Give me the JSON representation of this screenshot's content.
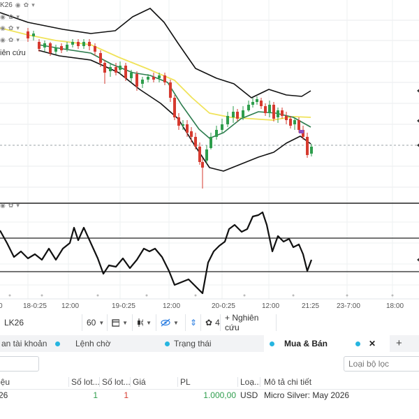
{
  "indicators": {
    "rows": [
      {
        "label": "K26",
        "icons": [
          "eye-icon",
          "gear-icon",
          "caret-down-icon"
        ]
      },
      {
        "label": "",
        "icons": [
          "eye-icon",
          "gear-icon",
          "caret-down-icon"
        ]
      },
      {
        "label": "",
        "icons": [
          "eye-icon",
          "gear-icon",
          "caret-down-icon"
        ]
      },
      {
        "label": "",
        "icons": [
          "eye-icon",
          "gear-icon",
          "caret-down-icon"
        ]
      }
    ],
    "research_label": "iên cứu",
    "lower_pane_icons": [
      "eye-icon",
      "gear-icon",
      "caret-down-icon"
    ]
  },
  "time_axis": {
    "labels": [
      "0",
      "18-0:25",
      "12:00",
      "19-0:25",
      "12:00",
      "20-0:25",
      "12:00",
      "21:25",
      "23-7:00",
      "18:00"
    ]
  },
  "toolbar": {
    "symbol": "LK26",
    "timeframe": "60",
    "indicator_count": "4",
    "research_button": "+ Nghiên cứu"
  },
  "tabs": [
    {
      "label": "an tài khoản",
      "active": false
    },
    {
      "label": "Lệnh chờ",
      "active": false
    },
    {
      "label": "Trạng thái",
      "active": false
    },
    {
      "label": "Mua & Bán",
      "active": true
    }
  ],
  "tab_actions": {
    "close": "✕",
    "add": "+"
  },
  "filter": {
    "placeholder": "Loại bộ lọc"
  },
  "table": {
    "headers": [
      "iệu",
      "Số lot...",
      "Số lot...",
      "Giá",
      "PL",
      "Loạ...",
      "Mô tả chi tiết"
    ],
    "row": {
      "symbol": "26",
      "lots_buy": "1",
      "lots_sell": "1",
      "price": "",
      "pl": "1.000,00",
      "currency": "USD",
      "description": "Micro Silver: May 2026"
    }
  },
  "colors": {
    "bull": "#2e9d4c",
    "bear": "#d63a2f",
    "ma_green": "#2e7d4f",
    "ma_yellow": "#f0e35a",
    "tab_dot": "#26b5e0",
    "tab_bg": "#f2f3f5",
    "pl_green": "#2e9d4c",
    "sell_red": "#d63a2f"
  }
}
